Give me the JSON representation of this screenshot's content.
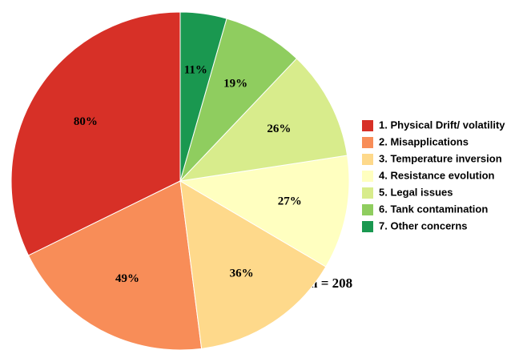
{
  "chart_data": {
    "type": "pie",
    "categories": [
      "1. Physical Drift/ volatility",
      "2. Misapplications",
      "3. Temperature inversion",
      "4. Resistance evolution",
      "5. Legal issues",
      "6. Tank contamination",
      "7. Other concerns"
    ],
    "values": [
      80,
      49,
      36,
      27,
      26,
      19,
      11
    ],
    "value_labels": [
      "80%",
      "49%",
      "36%",
      "27%",
      "26%",
      "19%",
      "11%"
    ],
    "colors": [
      "#d73027",
      "#f88d58",
      "#fed98b",
      "#ffffc0",
      "#d8ec8c",
      "#8fcd5f",
      "#1a9850"
    ],
    "annotation": "n = 208",
    "legend": "right"
  }
}
